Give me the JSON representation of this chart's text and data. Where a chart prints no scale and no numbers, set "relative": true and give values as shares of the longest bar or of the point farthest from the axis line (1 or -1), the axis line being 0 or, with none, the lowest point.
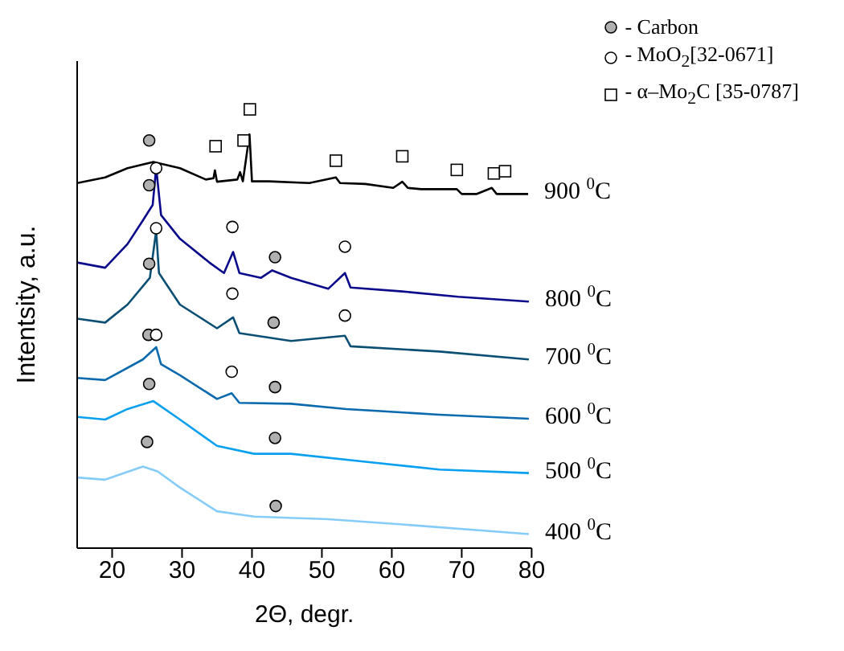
{
  "chart_data": {
    "type": "line",
    "relative": true,
    "xlabel": "2Θ, degr.",
    "ylabel": "Intentsity, a.u.",
    "xlim": [
      15,
      80
    ],
    "xticks": [
      20,
      30,
      40,
      50,
      60,
      70,
      80
    ],
    "grid": false,
    "legend": "top right",
    "marker": "none",
    "line_style": "solid",
    "series": [
      {
        "name": "900 $^{0}$C",
        "color": "#000000",
        "x": [
          15,
          19,
          22.2,
          25.9,
          29.7,
          33.4,
          34.5,
          34.7,
          35,
          37.9,
          38.3,
          38.7,
          39.65,
          40,
          42.4,
          48.2,
          52,
          52.6,
          56.2,
          60.2,
          61.5,
          62.3,
          64.2,
          69.3,
          70,
          72.1,
          74.3,
          75,
          79.5
        ],
        "values": [
          0.832,
          0.845,
          0.866,
          0.88,
          0.866,
          0.84,
          0.843,
          0.861,
          0.835,
          0.84,
          0.857,
          0.836,
          0.943,
          0.836,
          0.836,
          0.832,
          0.845,
          0.832,
          0.83,
          0.821,
          0.835,
          0.821,
          0.818,
          0.818,
          0.807,
          0.807,
          0.821,
          0.807,
          0.807
        ]
      },
      {
        "name": "800 $^{0}$C",
        "color": "#0a0a8a",
        "x": [
          15,
          19,
          22.2,
          24.4,
          25.8,
          26.3,
          27,
          29.7,
          33.9,
          36,
          37.3,
          38.2,
          41.3,
          42.9,
          45.6,
          50.9,
          53.3,
          54.1,
          61.5,
          69.5,
          79.6
        ],
        "values": [
          0.651,
          0.639,
          0.693,
          0.747,
          0.782,
          0.867,
          0.759,
          0.705,
          0.651,
          0.627,
          0.675,
          0.627,
          0.616,
          0.633,
          0.616,
          0.591,
          0.627,
          0.594,
          0.585,
          0.573,
          0.562
        ]
      },
      {
        "name": "700 $^{0}$C",
        "color": "#0b4f74",
        "x": [
          15,
          19,
          22.2,
          25.4,
          26.3,
          26.7,
          29.7,
          35,
          37.3,
          38.2,
          45.6,
          53.3,
          54.1,
          66.8,
          79.6
        ],
        "values": [
          0.523,
          0.514,
          0.555,
          0.616,
          0.723,
          0.627,
          0.555,
          0.501,
          0.526,
          0.49,
          0.472,
          0.484,
          0.46,
          0.448,
          0.43
        ]
      },
      {
        "name": "600 $^{0}$C",
        "color": "#0b6aae",
        "x": [
          15,
          19,
          24.4,
          26.3,
          27,
          29.7,
          35,
          37.1,
          38.2,
          45.6,
          53.5,
          66.8,
          79.6
        ],
        "values": [
          0.388,
          0.383,
          0.43,
          0.458,
          0.419,
          0.394,
          0.34,
          0.353,
          0.331,
          0.329,
          0.317,
          0.304,
          0.295
        ]
      },
      {
        "name": "500 $^{0}$C",
        "color": "#0aa0f0",
        "x": [
          15,
          19,
          22.2,
          25.9,
          29.7,
          35,
          40.3,
          45.6,
          56.2,
          66.8,
          79.6
        ],
        "values": [
          0.299,
          0.293,
          0.317,
          0.335,
          0.293,
          0.233,
          0.215,
          0.215,
          0.197,
          0.179,
          0.171
        ]
      },
      {
        "name": "400 $^{0}$C",
        "color": "#86ccf8",
        "x": [
          15,
          19,
          24.4,
          26.5,
          29.7,
          35,
          40.3,
          50.9,
          61.5,
          79.6
        ],
        "values": [
          0.161,
          0.156,
          0.186,
          0.175,
          0.138,
          0.084,
          0.072,
          0.066,
          0.054,
          0.032
        ]
      },
      {
        "name": "-  Carbon",
        "type": "scatter",
        "marker": "circle",
        "color": "#b0b0b0",
        "x": [
          25.3,
          25.3,
          43.3,
          25.3,
          43.1,
          25.2,
          25.3,
          43.3,
          25.0,
          43.3,
          43.4
        ],
        "values": [
          0.929,
          0.827,
          0.663,
          0.648,
          0.514,
          0.486,
          0.374,
          0.367,
          0.242,
          0.251,
          0.096
        ]
      },
      {
        "name": "- MoO$_{2}$[32-0671]",
        "type": "scatter",
        "marker": "circle",
        "color": "#ffffff",
        "x": [
          26.3,
          37.2,
          53.3,
          26.3,
          37.2,
          53.3,
          26.3,
          37.1
        ],
        "values": [
          0.866,
          0.732,
          0.687,
          0.729,
          0.58,
          0.53,
          0.486,
          0.402
        ]
      },
      {
        "name": "- α–Mo$_{2}$C [35-0787]",
        "type": "scatter",
        "marker": "square",
        "color": "#ffffff",
        "x": [
          34.8,
          38.8,
          39.7,
          52,
          61.5,
          69.3,
          74.6,
          76.2
        ],
        "values": [
          0.916,
          0.929,
          1.0,
          0.883,
          0.893,
          0.862,
          0.854,
          0.859
        ]
      }
    ]
  }
}
